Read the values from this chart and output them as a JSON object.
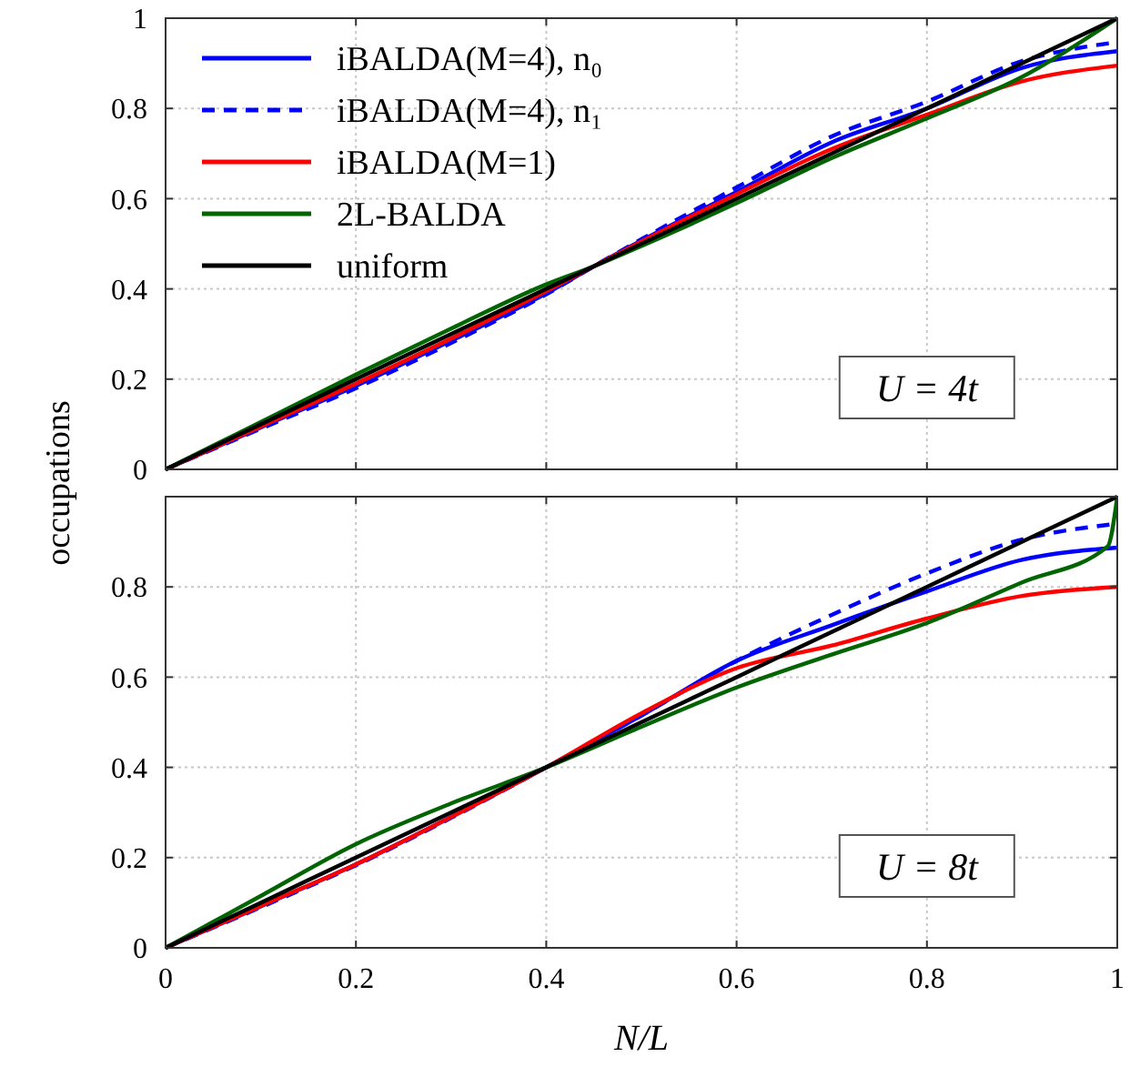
{
  "chart_data": [
    {
      "type": "line",
      "ylabel": "occupations",
      "xlim": [
        0,
        1
      ],
      "xticks": [
        0,
        0.2,
        0.4,
        0.6,
        0.8,
        1
      ],
      "ylim": [
        0,
        1
      ],
      "yticks": [
        0,
        0.2,
        0.4,
        0.6,
        0.8,
        1
      ],
      "grid": true,
      "legend": "top left",
      "tick_labels": "y",
      "annotations": [
        "U = 4t"
      ],
      "x": [
        0,
        0.1,
        0.2,
        0.3,
        0.4,
        0.45,
        0.5,
        0.6,
        0.7,
        0.8,
        0.9,
        1
      ],
      "series": [
        {
          "name": "iBALDA(M=4), n₀",
          "color": "#0000ff",
          "values": [
            0,
            0.093,
            0.185,
            0.285,
            0.39,
            0.45,
            0.507,
            0.615,
            0.725,
            0.8,
            0.89,
            0.927
          ]
        },
        {
          "name": "iBALDA(M=4), n₁",
          "color": "#0000ff",
          "line_style": "dashed",
          "values": [
            0,
            0.09,
            0.18,
            0.28,
            0.388,
            0.45,
            0.51,
            0.625,
            0.738,
            0.815,
            0.905,
            0.947
          ]
        },
        {
          "name": "iBALDA(M=1)",
          "color": "#ff0000",
          "values": [
            0,
            0.095,
            0.19,
            0.29,
            0.395,
            0.45,
            0.505,
            0.61,
            0.71,
            0.786,
            0.86,
            0.895
          ]
        },
        {
          "name": "2L-BALDA",
          "color": "#006400",
          "values": [
            0,
            0.105,
            0.21,
            0.312,
            0.41,
            0.45,
            0.495,
            0.59,
            0.69,
            0.778,
            0.87,
            1.0
          ]
        },
        {
          "name": "uniform",
          "color": "#000000",
          "values": [
            0,
            0.1,
            0.2,
            0.3,
            0.4,
            0.45,
            0.5,
            0.6,
            0.7,
            0.8,
            0.9,
            1
          ]
        }
      ]
    },
    {
      "type": "line",
      "xlabel": "N/L",
      "xlim": [
        0,
        1
      ],
      "xticks": [
        0,
        0.2,
        0.4,
        0.6,
        0.8,
        1
      ],
      "ylim": [
        0,
        1
      ],
      "yticks": [
        0,
        0.2,
        0.4,
        0.6,
        0.8
      ],
      "grid": true,
      "annotations": [
        "U = 8t"
      ],
      "x": [
        0,
        0.1,
        0.2,
        0.3,
        0.4,
        0.5,
        0.6,
        0.7,
        0.8,
        0.9,
        1
      ],
      "series": [
        {
          "color": "#0000ff",
          "values": [
            0,
            0.092,
            0.185,
            0.29,
            0.4,
            0.515,
            0.636,
            0.715,
            0.79,
            0.86,
            0.887
          ]
        },
        {
          "color": "#0000ff",
          "line_style": "dashed",
          "values": [
            0,
            0.09,
            0.183,
            0.288,
            0.4,
            0.515,
            0.636,
            0.738,
            0.83,
            0.905,
            0.94
          ]
        },
        {
          "color": "#ff0000",
          "values": [
            0,
            0.093,
            0.185,
            0.29,
            0.4,
            0.52,
            0.62,
            0.67,
            0.73,
            0.78,
            0.8
          ]
        },
        {
          "color": "#006400",
          "x": [
            0,
            0.1,
            0.2,
            0.3,
            0.4,
            0.5,
            0.6,
            0.7,
            0.8,
            0.9,
            0.99,
            1
          ],
          "values": [
            0,
            0.115,
            0.23,
            0.32,
            0.4,
            0.49,
            0.577,
            0.65,
            0.72,
            0.81,
            0.89,
            1.0
          ]
        },
        {
          "color": "#000000",
          "values": [
            0,
            0.1,
            0.2,
            0.3,
            0.4,
            0.5,
            0.6,
            0.7,
            0.8,
            0.9,
            1
          ]
        }
      ]
    }
  ]
}
